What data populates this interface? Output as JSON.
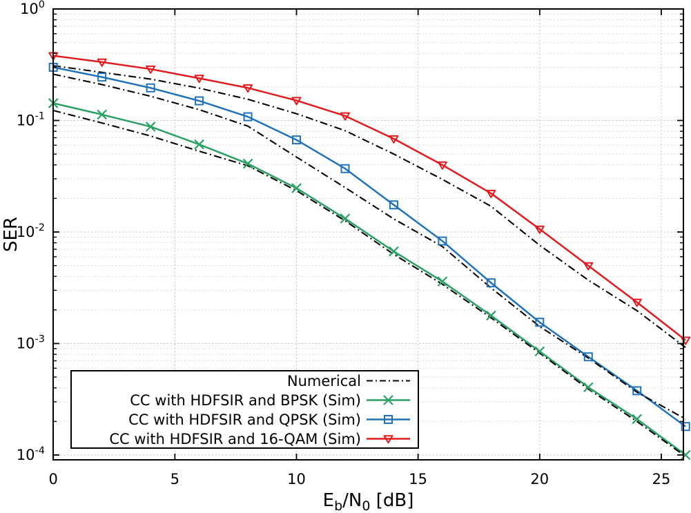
{
  "figure": {
    "background": "#ffffff",
    "frame_color": "#000000",
    "grid_major_color": "#c2c2c2",
    "grid_minor_color": "#dcdcdc"
  },
  "chart_data": {
    "type": "line",
    "title": "",
    "xlabel": "Eb/N0 [dB]",
    "xlabel_parts": [
      {
        "t": "E",
        "sub": false
      },
      {
        "t": "b",
        "sub": true
      },
      {
        "t": "/N",
        "sub": false
      },
      {
        "t": "0",
        "sub": true
      },
      {
        "t": " [dB]",
        "sub": false
      }
    ],
    "ylabel": "SER",
    "x_axis_scale": "linear",
    "y_axis_scale": "log",
    "xlim": [
      0,
      25.9
    ],
    "ylim": [
      8.9e-05,
      1.0
    ],
    "xticks": [
      0,
      5,
      10,
      15,
      20,
      25
    ],
    "ytick_exponents": [
      "0",
      "-1",
      "-2",
      "-3",
      "-4"
    ],
    "ytick_labels": [
      "10^0",
      "10^-1",
      "10^-2",
      "10^-3",
      "10^-4"
    ],
    "grid": "on",
    "legend_position": "bottom-left",
    "x": [
      0,
      2,
      4,
      6,
      8,
      10,
      12,
      14,
      16,
      18,
      20,
      22,
      24,
      26
    ],
    "series": [
      {
        "id": "numerical-16qam",
        "legend": "Numerical",
        "show_in_legend": false,
        "color": "#000000",
        "line": "dashdot",
        "marker": "none",
        "values": [
          0.31,
          0.27,
          0.235,
          0.195,
          0.155,
          0.115,
          0.081,
          0.05,
          0.0296,
          0.017,
          0.0076,
          0.0037,
          0.00197,
          0.00092
        ]
      },
      {
        "id": "numerical-qpsk",
        "legend": "Numerical",
        "show_in_legend": false,
        "color": "#000000",
        "line": "dashdot",
        "marker": "none",
        "values": [
          0.26,
          0.21,
          0.165,
          0.125,
          0.089,
          0.047,
          0.025,
          0.0131,
          0.0074,
          0.00315,
          0.00142,
          0.00074,
          0.000366,
          0.00021
        ]
      },
      {
        "id": "numerical-bpsk",
        "legend": "Numerical",
        "show_in_legend": true,
        "color": "#000000",
        "line": "dashdot",
        "marker": "none",
        "values": [
          0.123,
          0.095,
          0.0726,
          0.053,
          0.0393,
          0.0235,
          0.0126,
          0.0063,
          0.0034,
          0.0017,
          0.00082,
          0.00039,
          0.0002,
          9.7e-05
        ]
      },
      {
        "id": "cc-hdfsir-bpsk-sim",
        "legend": "CC with HDFSIR and BPSK (Sim)",
        "show_in_legend": true,
        "color": "#2aa064",
        "line": "solid",
        "marker": "cross",
        "values": [
          0.143,
          0.113,
          0.088,
          0.061,
          0.041,
          0.0247,
          0.0132,
          0.0067,
          0.0036,
          0.00178,
          0.00085,
          0.000405,
          0.00021,
          0.0001
        ]
      },
      {
        "id": "cc-hdfsir-qpsk-sim",
        "legend": "CC with HDFSIR and QPSK (Sim)",
        "show_in_legend": true,
        "color": "#1f72b8",
        "line": "solid",
        "marker": "square",
        "values": [
          0.3,
          0.245,
          0.196,
          0.15,
          0.108,
          0.067,
          0.037,
          0.0175,
          0.0083,
          0.0035,
          0.00155,
          0.00076,
          0.000377,
          0.00018
        ]
      },
      {
        "id": "cc-hdfsir-16qam-sim",
        "legend": "CC with HDFSIR and 16-QAM (Sim)",
        "show_in_legend": true,
        "color": "#e11a1d",
        "line": "solid",
        "marker": "triangle-down",
        "values": [
          0.381,
          0.334,
          0.289,
          0.239,
          0.196,
          0.151,
          0.11,
          0.0685,
          0.0399,
          0.0222,
          0.0106,
          0.00498,
          0.00234,
          0.00107
        ]
      }
    ],
    "legend_entries": [
      {
        "label": "Numerical",
        "color": "#000000",
        "line": "dashdot",
        "marker": "none"
      },
      {
        "label": "CC with HDFSIR and BPSK (Sim)",
        "color": "#2aa064",
        "line": "solid",
        "marker": "cross"
      },
      {
        "label": "CC with HDFSIR and QPSK (Sim)",
        "color": "#1f72b8",
        "line": "solid",
        "marker": "square"
      },
      {
        "label": "CC with HDFSIR and 16-QAM (Sim)",
        "color": "#e11a1d",
        "line": "solid",
        "marker": "triangle-down"
      }
    ]
  }
}
